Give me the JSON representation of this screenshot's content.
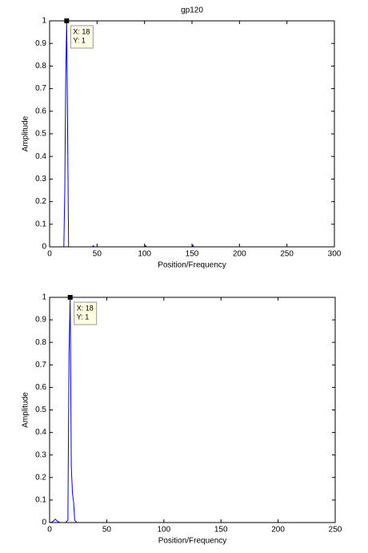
{
  "chart_data": [
    {
      "type": "line",
      "title": "gp120",
      "x_label": "Position/Frequency",
      "y_label": "Amplitude",
      "xlim": [
        0,
        300
      ],
      "xticks": [
        0,
        50,
        100,
        150,
        200,
        250,
        300
      ],
      "ylim": [
        0,
        1
      ],
      "yticks": [
        0,
        0.1,
        0.2,
        0.3,
        0.4,
        0.5,
        0.6,
        0.7,
        0.8,
        0.9,
        1
      ],
      "series": [
        {
          "color": "#0000ff",
          "x": [
            1,
            15,
            16,
            17,
            18,
            19,
            20,
            21,
            45,
            46,
            47,
            100,
            101,
            102,
            150,
            151,
            152,
            230
          ],
          "values": [
            0,
            0,
            0.25,
            0.75,
            1,
            0.5,
            0,
            0,
            0,
            0.005,
            0,
            0,
            0.006,
            0,
            0,
            0.007,
            0,
            0
          ]
        }
      ],
      "annotations": [
        {
          "x": 18,
          "y": 1,
          "lines": [
            "X: 18",
            "Y: 1"
          ]
        }
      ]
    },
    {
      "type": "line",
      "x_label": "Position/Frequency",
      "y_label": "Amplitude",
      "xlim": [
        0,
        250
      ],
      "xticks": [
        0,
        50,
        100,
        150,
        200,
        250
      ],
      "ylim": [
        0,
        1
      ],
      "yticks": [
        0,
        0.1,
        0.2,
        0.3,
        0.4,
        0.5,
        0.6,
        0.7,
        0.8,
        0.9,
        1
      ],
      "series": [
        {
          "color": "#0000ff",
          "x": [
            1,
            3,
            5,
            7,
            9,
            14,
            16,
            17,
            18,
            19,
            20,
            21,
            22,
            24,
            240
          ],
          "values": [
            0,
            0.005,
            0.015,
            0.005,
            0,
            0,
            0.01,
            0.75,
            1,
            0.25,
            0.13,
            0.09,
            0.01,
            0,
            0
          ]
        }
      ],
      "annotations": [
        {
          "x": 18,
          "y": 1,
          "lines": [
            "X: 18",
            "Y: 1"
          ]
        }
      ]
    }
  ]
}
